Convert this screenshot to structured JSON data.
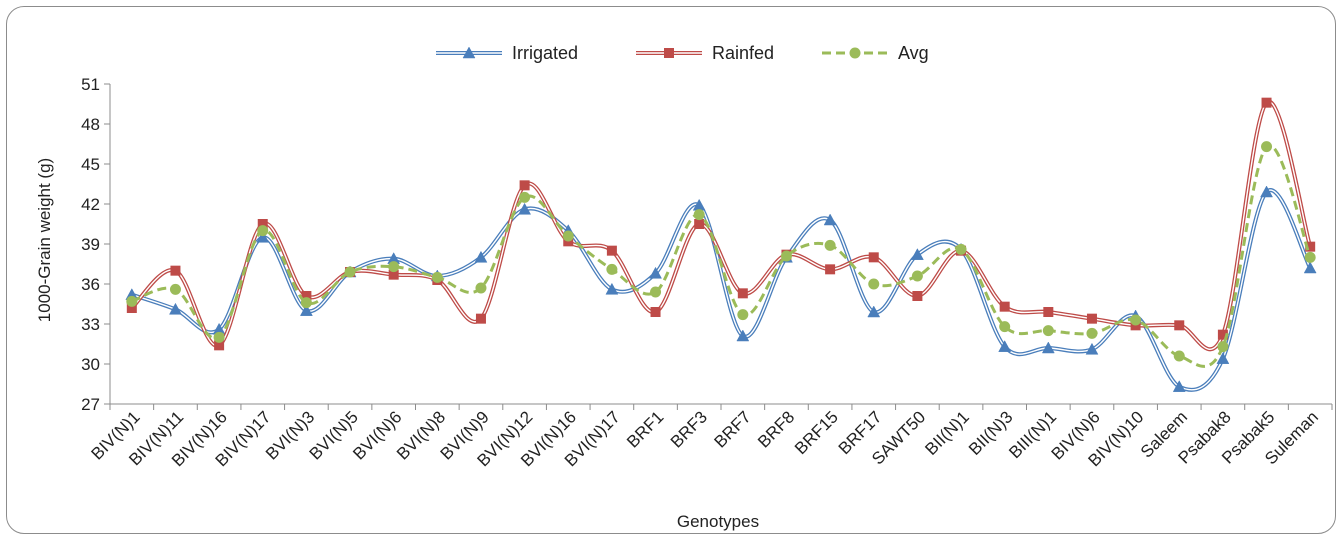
{
  "chart_data": {
    "type": "line",
    "title": "",
    "xlabel": "Genotypes",
    "ylabel": "1000-Grain weight (g)",
    "ylim": [
      27,
      51
    ],
    "yticks": [
      27,
      30,
      33,
      36,
      39,
      42,
      45,
      48,
      51
    ],
    "grid": false,
    "legend_position": "top-center",
    "categories": [
      "BIV(N)1",
      "BIV(N)11",
      "BIV(N)16",
      "BIV(N)17",
      "BVI(N)3",
      "BVI(N)5",
      "BVI(N)6",
      "BVI(N)8",
      "BVI(N)9",
      "BVI(N)12",
      "BVI(N)16",
      "BVI(N)17",
      "BRF1",
      "BRF3",
      "BRF7",
      "BRF8",
      "BRF15",
      "BRF17",
      "SAWT50",
      "BII(N)1",
      "BII(N)3",
      "BIII(N)1",
      "BIV(N)6",
      "BIV(N)10",
      "Saleem",
      "Psabak8",
      "Psabak5",
      "Suleman"
    ],
    "series": [
      {
        "name": "Irrigated",
        "color": "#4a7ebb",
        "marker": "triangle",
        "dash": "solid",
        "values": [
          35.2,
          34.1,
          32.6,
          39.5,
          34.0,
          36.9,
          37.9,
          36.6,
          38.0,
          41.6,
          40.0,
          35.6,
          36.8,
          41.9,
          32.1,
          38.0,
          40.8,
          33.9,
          38.2,
          38.6,
          31.3,
          31.2,
          31.1,
          33.6,
          28.3,
          30.4,
          42.9,
          37.2
        ]
      },
      {
        "name": "Rainfed",
        "color": "#be4b48",
        "marker": "square",
        "dash": "solid",
        "values": [
          34.2,
          37.0,
          31.4,
          40.5,
          35.1,
          36.9,
          36.7,
          36.3,
          33.4,
          43.4,
          39.2,
          38.5,
          33.9,
          40.5,
          35.3,
          38.2,
          37.1,
          38.0,
          35.1,
          38.5,
          34.3,
          33.9,
          33.4,
          32.9,
          32.9,
          32.2,
          49.6,
          38.8
        ]
      },
      {
        "name": "Avg",
        "color": "#9bbb59",
        "marker": "circle",
        "dash": "dashed",
        "values": [
          34.7,
          35.6,
          32.0,
          40.0,
          34.6,
          36.9,
          37.3,
          36.5,
          35.7,
          42.5,
          39.6,
          37.1,
          35.4,
          41.2,
          33.7,
          38.1,
          38.9,
          36.0,
          36.6,
          38.6,
          32.8,
          32.5,
          32.3,
          33.3,
          30.6,
          31.3,
          46.3,
          38.0
        ]
      }
    ]
  }
}
